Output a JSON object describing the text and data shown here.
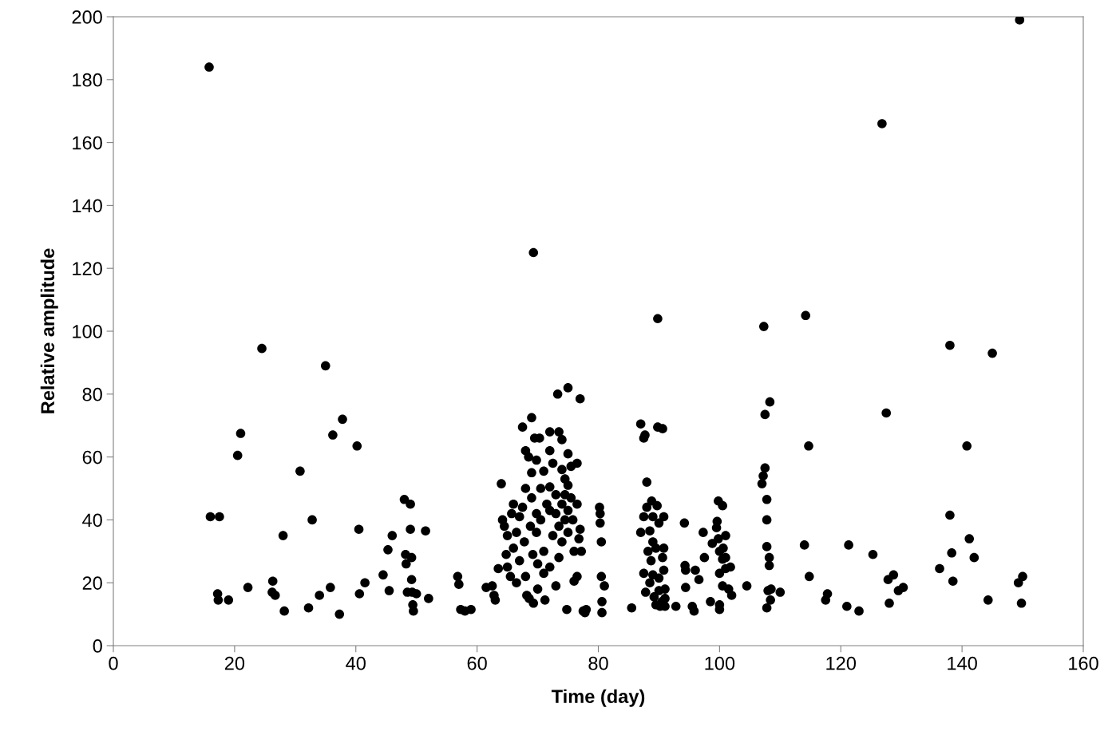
{
  "chart_data": {
    "type": "scatter",
    "xlabel": "Time (day)",
    "ylabel": "Relative amplitude",
    "xlim": [
      0,
      160
    ],
    "xticks": [
      0,
      20,
      40,
      60,
      80,
      100,
      120,
      140,
      160
    ],
    "ylim": [
      0,
      200
    ],
    "yticks": [
      0,
      20,
      40,
      60,
      80,
      100,
      120,
      140,
      160,
      180,
      200
    ],
    "grid": false,
    "legend": false,
    "marker": "circle",
    "series": [
      {
        "color": "#000000",
        "x": [
          15.8,
          149.5,
          126.8,
          69.3,
          89.8,
          107.3,
          114.2,
          138,
          145,
          24.5,
          35,
          16,
          17.5,
          17.2,
          17.3,
          19,
          20.5,
          21,
          22.2,
          26.3,
          26.2,
          26.7,
          28,
          28.2,
          30.8,
          32.2,
          32.8,
          34,
          35.8,
          36.2,
          37.3,
          37.8,
          40.2,
          40.5,
          40.6,
          41.5,
          44.5,
          45.3,
          45.5,
          46,
          48,
          48.2,
          48.3,
          48.5,
          49,
          49,
          49.2,
          49.2,
          49.3,
          49.4,
          49.5,
          50,
          51.5,
          52,
          56.8,
          57,
          57.3,
          58,
          59,
          61.5,
          62.5,
          62.8,
          63,
          63.5,
          64,
          64.2,
          64.5,
          64.8,
          65,
          65,
          65.5,
          65.7,
          66,
          66,
          66.5,
          66.5,
          67,
          67,
          67.5,
          67.5,
          67.8,
          68,
          68,
          68,
          68.2,
          68.5,
          68.6,
          68.8,
          69,
          69,
          69,
          69.2,
          69.3,
          69.5,
          69.8,
          69.8,
          69.8,
          70,
          70,
          70.3,
          70.5,
          70.5,
          71,
          71,
          71,
          71.2,
          71.5,
          72,
          72,
          72,
          72,
          72,
          72.5,
          72.5,
          73,
          73,
          73,
          73.3,
          73.5,
          73.5,
          73.5,
          74,
          74,
          74,
          74,
          74.5,
          74.5,
          74.5,
          74.8,
          75,
          75,
          75,
          75,
          75,
          75.5,
          75.5,
          75.8,
          76,
          76,
          76.5,
          76.5,
          76.5,
          76.8,
          77,
          77,
          77.2,
          77.5,
          77.8,
          78,
          80.2,
          80.3,
          80.3,
          80.5,
          80.5,
          80.6,
          80.6,
          81,
          85.5,
          87,
          87.5,
          87.7,
          88,
          87.5,
          87,
          87.5,
          87.8,
          88,
          88.2,
          88.5,
          88.5,
          88.7,
          88.8,
          89,
          89,
          89,
          89.2,
          89.5,
          89.5,
          89.7,
          89.8,
          90,
          90,
          90,
          90.2,
          90.5,
          90.6,
          90.6,
          90.8,
          90.8,
          90.8,
          91,
          91,
          91,
          92.8,
          94.2,
          94.3,
          94.4,
          94.4,
          95.5,
          95.8,
          96,
          96.6,
          97.3,
          97.5,
          98.5,
          98.8,
          99.5,
          99.6,
          99.8,
          99.8,
          100,
          100,
          100,
          100,
          100.5,
          100.5,
          100.5,
          100.6,
          101,
          101,
          101,
          101.5,
          101.8,
          102,
          104.5,
          107,
          107.2,
          107.5,
          107.5,
          107.8,
          107.8,
          107.8,
          107.8,
          108,
          108.2,
          108.2,
          108.3,
          108.4,
          108.5,
          110,
          114,
          114.7,
          114.8,
          117.5,
          117.8,
          121,
          121.3,
          123,
          125.3,
          127.5,
          127.8,
          128,
          128.7,
          129.5,
          130.3,
          136.3,
          138,
          138.3,
          138.5,
          140.8,
          141.2,
          142,
          144.3,
          149.3,
          150,
          149.8
        ],
        "values": [
          184,
          199,
          166,
          125,
          104,
          101.5,
          105,
          95.5,
          93,
          94.5,
          89,
          41,
          41,
          16.5,
          14.5,
          14.5,
          60.5,
          67.5,
          18.5,
          20.5,
          17,
          16,
          35,
          11,
          55.5,
          12,
          40,
          16,
          18.5,
          67,
          10,
          72,
          63.5,
          37,
          16.5,
          20,
          22.5,
          30.5,
          17.5,
          35,
          46.5,
          29,
          26,
          17,
          45,
          37,
          28,
          21,
          17,
          13,
          11,
          16.5,
          36.5,
          15,
          22,
          19.5,
          11.5,
          11,
          11.5,
          18.5,
          19,
          16,
          14.5,
          24.5,
          51.5,
          40,
          38,
          29,
          35,
          25,
          22,
          42,
          31,
          45,
          36,
          20,
          41,
          27,
          69.5,
          44,
          33,
          62,
          50,
          22,
          16,
          60,
          15,
          38,
          72.5,
          55,
          47,
          29,
          13.5,
          66,
          59,
          42,
          36,
          26,
          18,
          66,
          50,
          40,
          30,
          55.5,
          23,
          14.5,
          45,
          68,
          62,
          50.5,
          43,
          25,
          58,
          35,
          48,
          42,
          19,
          80,
          68,
          38,
          28,
          65.5,
          56,
          45,
          33,
          53,
          48,
          40,
          11.5,
          82,
          61,
          51,
          43,
          36,
          57,
          47,
          40,
          30,
          20.5,
          58,
          45,
          22,
          34,
          78.5,
          37,
          30,
          11,
          10.5,
          11.5,
          44,
          42,
          39,
          33,
          22,
          14,
          10.5,
          19,
          12,
          70.5,
          66,
          67,
          52,
          41,
          36,
          23,
          17,
          44,
          30,
          36.5,
          20,
          27,
          46,
          33,
          41,
          22.5,
          15.5,
          13,
          31,
          44.5,
          69.5,
          39,
          21.5,
          17.5,
          12.5,
          14,
          28,
          69,
          41,
          31,
          24,
          18,
          15,
          12.5,
          12.5,
          39,
          25.5,
          24,
          18.5,
          12.5,
          11,
          24,
          21,
          36,
          28,
          14,
          32.5,
          37.5,
          39.5,
          34,
          46,
          30,
          23,
          13,
          11.5,
          44.5,
          27.5,
          19,
          31,
          35,
          28,
          24.5,
          18,
          25,
          16,
          19,
          51.5,
          54,
          56.5,
          73.5,
          46.5,
          40,
          31.5,
          12,
          17.5,
          25.5,
          28,
          77.5,
          14.5,
          18,
          17,
          32,
          63.5,
          22,
          14.5,
          16.5,
          12.5,
          32,
          11,
          29,
          74,
          21,
          13.5,
          22.5,
          17.5,
          18.5,
          24.5,
          41.5,
          29.5,
          20.5,
          63.5,
          34,
          28,
          14.5,
          20,
          22,
          13.5
        ]
      }
    ]
  }
}
